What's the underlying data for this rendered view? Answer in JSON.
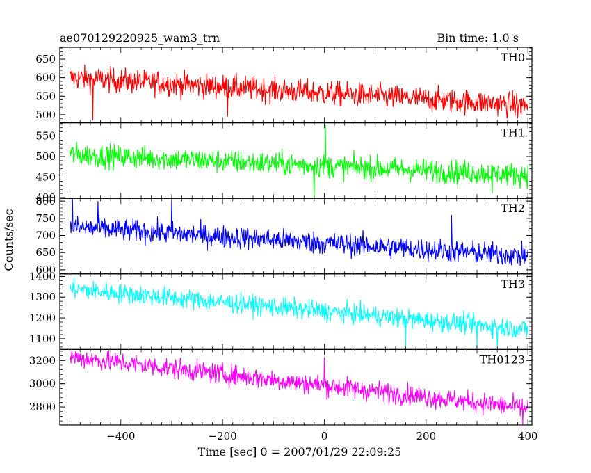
{
  "header": {
    "title": "ae070129220925_wam3_trn",
    "bin_time": "Bin time: 1.0 s"
  },
  "chart_data": {
    "type": "line",
    "xlabel": "Time [sec] 0 = 2007/01/29 22:09:25",
    "ylabel": "Counts/sec",
    "xlim": [
      -520,
      408
    ],
    "xticks": [
      -400,
      -200,
      0,
      200,
      400
    ],
    "x_range": [
      -500,
      400
    ],
    "bin_time_s": 1.0,
    "panels": [
      {
        "name": "TH0",
        "color": "#ff0000",
        "ylim": [
          478,
          682
        ],
        "yticks": [
          500,
          550,
          600,
          650
        ],
        "trend_start": 600,
        "trend_end": 525,
        "noise_amplitude": 28,
        "spike_points": [
          {
            "x": -455,
            "y": 485
          },
          {
            "x": -190,
            "y": 495
          },
          {
            "x": 380,
            "y": 490
          }
        ]
      },
      {
        "name": "TH1",
        "color": "#00ff00",
        "ylim": [
          398,
          582
        ],
        "yticks": [
          400,
          450,
          500,
          550
        ],
        "trend_start": 505,
        "trend_end": 455,
        "noise_amplitude": 24,
        "spike_points": [
          {
            "x": 2,
            "y": 578
          },
          {
            "x": -20,
            "y": 400
          },
          {
            "x": 330,
            "y": 410
          }
        ]
      },
      {
        "name": "TH2",
        "color": "#0000ff",
        "ylim": [
          588,
          808
        ],
        "yticks": [
          600,
          650,
          700,
          750,
          800
        ],
        "trend_start": 725,
        "trend_end": 640,
        "noise_amplitude": 28,
        "spike_points": [
          {
            "x": -495,
            "y": 808
          },
          {
            "x": -445,
            "y": 800
          },
          {
            "x": -300,
            "y": 805
          },
          {
            "x": 250,
            "y": 760
          }
        ]
      },
      {
        "name": "TH3",
        "color": "#00ffff",
        "ylim": [
          1048,
          1412
        ],
        "yticks": [
          1100,
          1200,
          1300,
          1400
        ],
        "trend_start": 1340,
        "trend_end": 1145,
        "noise_amplitude": 40,
        "spike_points": [
          {
            "x": 160,
            "y": 1060
          },
          {
            "x": 340,
            "y": 1060
          },
          {
            "x": 300,
            "y": 1055
          }
        ]
      },
      {
        "name": "TH0123",
        "color": "#ff00ff",
        "ylim": [
          2645,
          3295
        ],
        "yticks": [
          2800,
          3000,
          3200
        ],
        "trend_start": 3230,
        "trend_end": 2790,
        "noise_amplitude": 75,
        "spike_points": [
          {
            "x": 0,
            "y": 3230
          },
          {
            "x": 390,
            "y": 2650
          }
        ]
      }
    ]
  }
}
